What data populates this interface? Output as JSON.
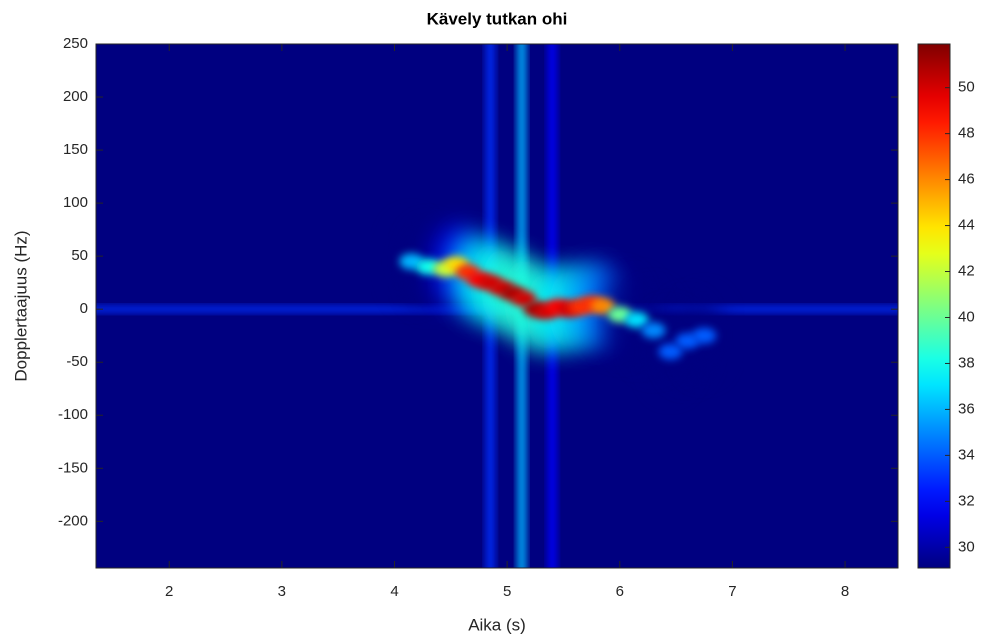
{
  "chart_data": {
    "type": "spectrogram",
    "title": "Kävely tutkan ohi",
    "xlabel": "Aika (s)",
    "ylabel": "Dopplertaajuus (Hz)",
    "xlim": [
      1.35,
      8.47
    ],
    "ylim": [
      -244,
      250
    ],
    "xticks": [
      2,
      3,
      4,
      5,
      6,
      7,
      8
    ],
    "yticks": [
      -200,
      -150,
      -100,
      -50,
      0,
      50,
      100,
      150,
      200,
      250
    ],
    "clim": [
      29.1,
      51.9
    ],
    "cticks": [
      30,
      32,
      34,
      36,
      38,
      40,
      42,
      44,
      46,
      48,
      50
    ],
    "colormap": "jet",
    "ridge": {
      "x": [
        4.15,
        4.3,
        4.45,
        4.55,
        4.65,
        4.75,
        4.85,
        4.95,
        5.05,
        5.15,
        5.25,
        5.35,
        5.45,
        5.55,
        5.65,
        5.75,
        5.85,
        6.0,
        6.15,
        6.3,
        6.45,
        6.6,
        6.75
      ],
      "y": [
        45,
        40,
        38,
        42,
        35,
        28,
        25,
        20,
        15,
        10,
        0,
        -2,
        2,
        0,
        2,
        5,
        3,
        -5,
        -10,
        -20,
        -40,
        -30,
        -25
      ],
      "values": [
        36,
        38,
        42,
        44,
        48,
        49,
        50,
        50,
        51,
        50,
        51,
        50,
        49,
        50,
        48,
        48,
        46,
        40,
        37,
        35,
        34,
        34,
        34
      ]
    },
    "streaks": {
      "x": [
        4.85,
        5.13,
        5.4
      ],
      "values": [
        33,
        36,
        32
      ]
    },
    "baseline": {
      "y": 0,
      "value": 33
    }
  }
}
